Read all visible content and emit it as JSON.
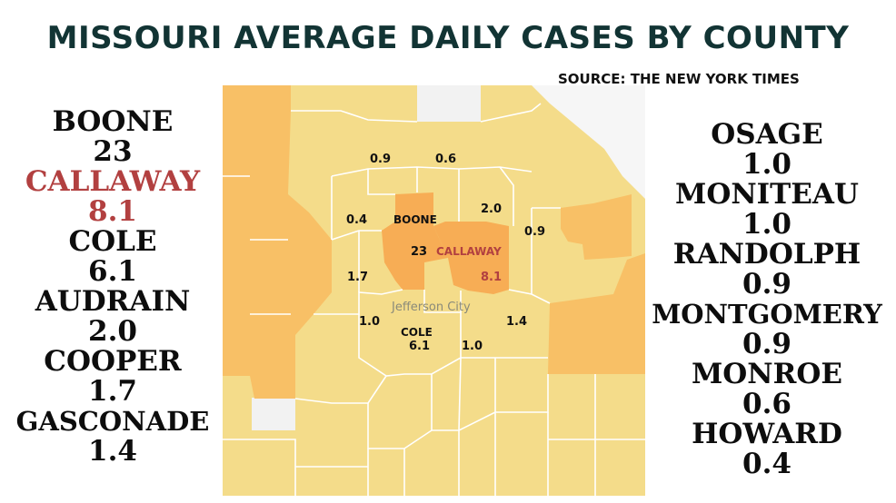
{
  "title": "MISSOURI AVERAGE DAILY CASES BY COUNTY",
  "source": "SOURCE: THE NEW YORK TIMES",
  "left_list": [
    {
      "name": "BOONE",
      "value": "23",
      "highlight": false
    },
    {
      "name": "CALLAWAY",
      "value": "8.1",
      "highlight": true
    },
    {
      "name": "COLE",
      "value": "6.1",
      "highlight": false
    },
    {
      "name": "AUDRAIN",
      "value": "2.0",
      "highlight": false
    },
    {
      "name": "COOPER",
      "value": "1.7",
      "highlight": false
    },
    {
      "name": "GASCONADE",
      "value": "1.4",
      "highlight": false
    }
  ],
  "right_list": [
    {
      "name": "OSAGE",
      "value": "1.0"
    },
    {
      "name": "MONITEAU",
      "value": "1.0"
    },
    {
      "name": "RANDOLPH",
      "value": "0.9"
    },
    {
      "name": "MONTGOMERY",
      "value": "0.9"
    },
    {
      "name": "MONROE",
      "value": "0.6"
    },
    {
      "name": "HOWARD",
      "value": "0.4"
    }
  ],
  "map_labels": {
    "randolph": "0.9",
    "monroe": "0.6",
    "boone_name": "BOONE",
    "howard": "0.4",
    "audrain": "2.0",
    "montgomery": "0.9",
    "boone_value": "23",
    "callaway_name": "CALLAWAY",
    "cooper": "1.7",
    "callaway_value": "8.1",
    "city": "Jefferson City",
    "moniteau": "1.0",
    "gasconade": "1.4",
    "cole_name": "COLE",
    "cole_value": "6.1",
    "osage": "1.0"
  },
  "colors": {
    "low": "#f4dc8a",
    "mid": "#f8c066",
    "high": "#f7ad55",
    "border": "#ffffff",
    "highlight_text": "#b24040",
    "title": "#123434"
  }
}
